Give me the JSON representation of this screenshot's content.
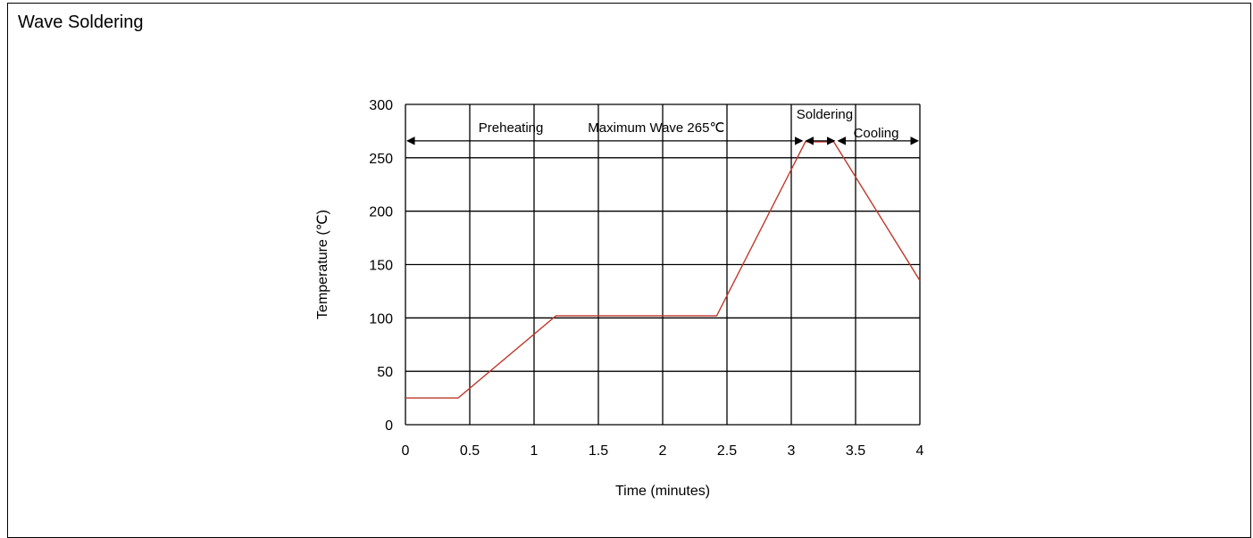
{
  "page": {
    "title": "Wave Soldering"
  },
  "chart_data": {
    "type": "line",
    "xlabel": "Time (minutes)",
    "ylabel": "Temperature (℃)",
    "xlim": [
      0,
      4
    ],
    "ylim": [
      0,
      300
    ],
    "xticks": [
      0,
      0.5,
      1,
      1.5,
      2,
      2.5,
      3,
      3.5,
      4
    ],
    "xtick_labels": [
      "0",
      "0.5",
      "1",
      "1.5",
      "2",
      "2.5",
      "3",
      "3.5",
      "4"
    ],
    "yticks": [
      0,
      50,
      100,
      150,
      200,
      250,
      300
    ],
    "ytick_labels": [
      "0",
      "50",
      "100",
      "150",
      "200",
      "250",
      "300"
    ],
    "grid": true,
    "line_color": "#C0392B",
    "series": [
      {
        "x": [
          0,
          0.41,
          1.17,
          2.42,
          3.11,
          3.33,
          4.0
        ],
        "y": [
          25,
          25,
          102,
          102,
          265,
          265,
          135
        ]
      }
    ],
    "annotations": {
      "preheating": "Preheating",
      "max_wave": "Maximum Wave 265℃",
      "soldering": "Soldering",
      "cooling": "Cooling"
    },
    "spans": {
      "main": [
        0,
        3.1
      ],
      "soldering": [
        3.1,
        3.35
      ],
      "cooling": [
        3.35,
        4.0
      ]
    },
    "span_y": 265
  }
}
